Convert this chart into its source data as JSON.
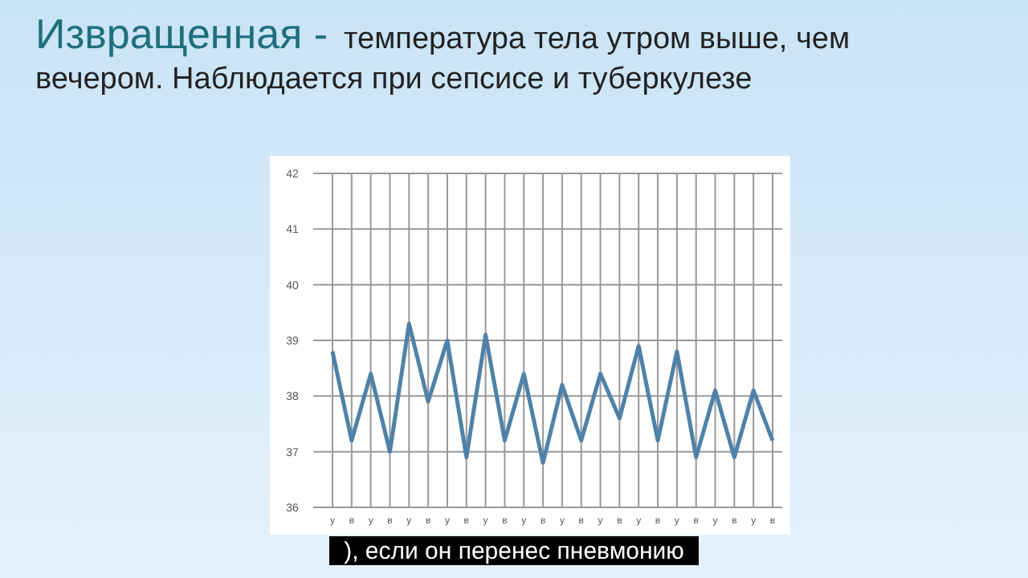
{
  "chart_data": {
    "type": "line",
    "title": "Извращенная -",
    "subtitle": "температура тела утром выше, чем вечером. Наблюдается при сепсисе и туберкулезе",
    "categories": [
      "у",
      "в",
      "у",
      "в",
      "у",
      "в",
      "у",
      "в",
      "у",
      "в",
      "у",
      "в",
      "у",
      "в",
      "у",
      "в",
      "у",
      "в",
      "у",
      "в",
      "у",
      "в",
      "у",
      "в"
    ],
    "series": [
      {
        "color": "#4f82a8",
        "values": [
          38.8,
          37.2,
          38.4,
          37.0,
          39.3,
          37.9,
          39.0,
          36.9,
          39.1,
          37.2,
          38.4,
          36.8,
          38.2,
          37.2,
          38.4,
          37.6,
          38.9,
          37.2,
          38.8,
          36.9,
          38.1,
          36.9,
          38.1,
          37.2
        ]
      }
    ],
    "ylim": [
      36,
      42
    ],
    "yticks": [
      36,
      37,
      38,
      39,
      40,
      41,
      42
    ],
    "grid": true,
    "marker": "none",
    "line_style": "solid",
    "annotations": [
      "), если он перенес пневмонию"
    ]
  }
}
